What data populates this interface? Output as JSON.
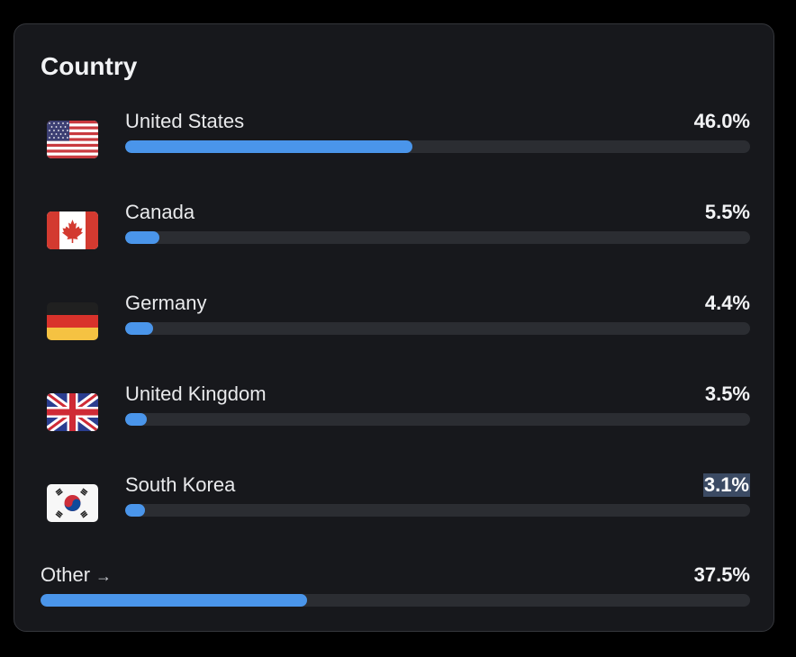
{
  "panel": {
    "title": "Country"
  },
  "countries": [
    {
      "name": "United States",
      "percent_label": "46.0%",
      "value": 46.0,
      "flag_icon": "us-flag-icon"
    },
    {
      "name": "Canada",
      "percent_label": "5.5%",
      "value": 5.5,
      "flag_icon": "canada-flag-icon"
    },
    {
      "name": "Germany",
      "percent_label": "4.4%",
      "value": 4.4,
      "flag_icon": "germany-flag-icon"
    },
    {
      "name": "United Kingdom",
      "percent_label": "3.5%",
      "value": 3.5,
      "flag_icon": "uk-flag-icon"
    },
    {
      "name": "South Korea",
      "percent_label": "3.1%",
      "value": 3.1,
      "flag_icon": "south-korea-flag-icon",
      "selected": true
    }
  ],
  "other": {
    "label": "Other",
    "arrow": "→",
    "percent_label": "37.5%",
    "value": 37.5
  },
  "colors": {
    "bar_fill": "#4a95ea",
    "bar_track": "#2b2d32",
    "card_background": "#17181c"
  }
}
